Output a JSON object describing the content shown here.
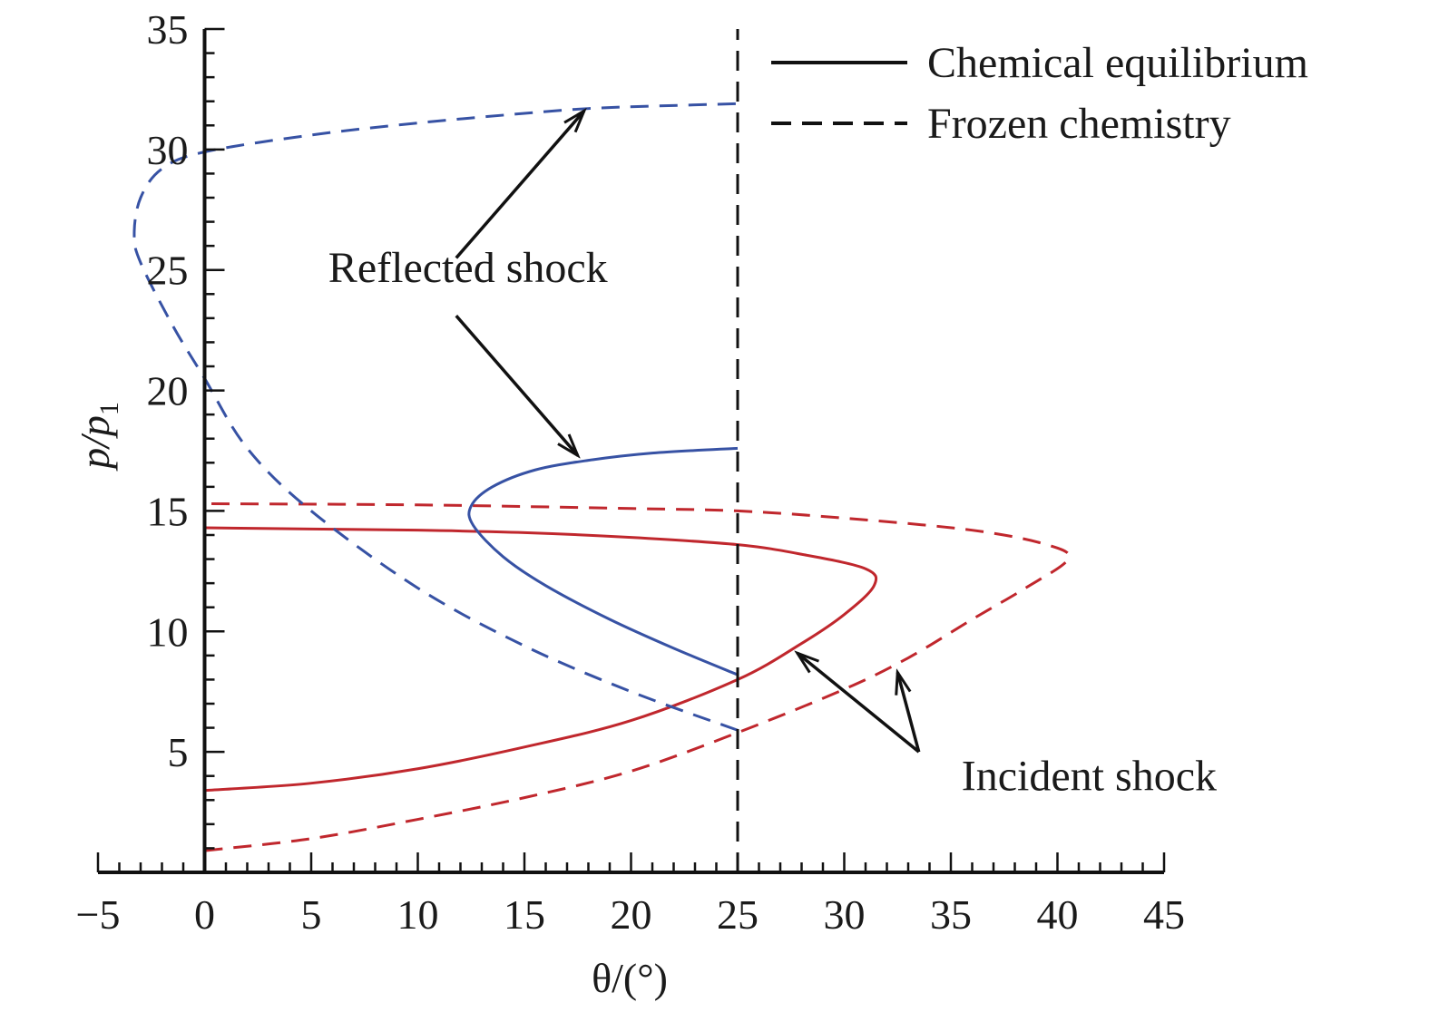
{
  "chart_data": {
    "type": "line",
    "xlabel": "θ/(°)",
    "ylabel": "p/p1",
    "xlim": [
      -5,
      45
    ],
    "ylim": [
      0,
      35
    ],
    "x_ticks": [
      "−5",
      "0",
      "5",
      "10",
      "15",
      "20",
      "25",
      "30",
      "35",
      "40",
      "45"
    ],
    "y_ticks": [
      "5",
      "10",
      "15",
      "20",
      "25",
      "30",
      "35"
    ],
    "grid": false,
    "legend_position": "top-right",
    "legend": [
      {
        "label": "Chemical equilibrium",
        "style": "solid"
      },
      {
        "label": "Frozen chemistry",
        "style": "dashed"
      }
    ],
    "colors": {
      "incident": "#c0272d",
      "reflected": "#3752a4",
      "reference": "#111111"
    },
    "series": [
      {
        "group": "incident",
        "style": "solid",
        "points": [
          [
            0,
            3.4
          ],
          [
            5,
            3.7
          ],
          [
            10,
            4.3
          ],
          [
            15,
            5.2
          ],
          [
            20,
            6.3
          ],
          [
            25,
            8.0
          ],
          [
            28,
            9.5
          ],
          [
            30,
            10.7
          ],
          [
            31.4,
            11.9
          ],
          [
            31,
            12.6
          ],
          [
            28,
            13.2
          ],
          [
            25,
            13.6
          ],
          [
            20,
            13.9
          ],
          [
            15,
            14.1
          ],
          [
            10,
            14.2
          ],
          [
            5,
            14.25
          ],
          [
            0,
            14.3
          ]
        ]
      },
      {
        "group": "incident",
        "style": "dashed",
        "points": [
          [
            0,
            0.9
          ],
          [
            5,
            1.4
          ],
          [
            10,
            2.2
          ],
          [
            15,
            3.1
          ],
          [
            20,
            4.2
          ],
          [
            25,
            5.8
          ],
          [
            30,
            7.6
          ],
          [
            33,
            8.9
          ],
          [
            36,
            10.5
          ],
          [
            38.5,
            11.8
          ],
          [
            40.5,
            13.0
          ],
          [
            39.5,
            13.6
          ],
          [
            36,
            14.2
          ],
          [
            30,
            14.7
          ],
          [
            25,
            15.0
          ],
          [
            20,
            15.1
          ],
          [
            10,
            15.25
          ],
          [
            0,
            15.3
          ]
        ]
      },
      {
        "group": "reflected",
        "style": "solid",
        "points": [
          [
            25,
            8.2
          ],
          [
            22,
            9.3
          ],
          [
            19,
            10.5
          ],
          [
            16,
            11.9
          ],
          [
            14,
            13.1
          ],
          [
            12.6,
            14.4
          ],
          [
            12.5,
            15.2
          ],
          [
            13.5,
            16.0
          ],
          [
            15.5,
            16.7
          ],
          [
            18,
            17.1
          ],
          [
            21,
            17.4
          ],
          [
            25,
            17.6
          ]
        ]
      },
      {
        "group": "reflected",
        "style": "dashed",
        "points": [
          [
            25,
            5.9
          ],
          [
            20,
            7.5
          ],
          [
            15,
            9.4
          ],
          [
            10,
            11.8
          ],
          [
            5,
            15.0
          ],
          [
            2,
            17.6
          ],
          [
            0,
            20.5
          ],
          [
            -1.5,
            22.7
          ],
          [
            -3,
            25.3
          ],
          [
            -3.3,
            26.5
          ],
          [
            -3,
            28.0
          ],
          [
            -2,
            29.2
          ],
          [
            0,
            29.9
          ],
          [
            5,
            30.6
          ],
          [
            10,
            31.1
          ],
          [
            15,
            31.5
          ],
          [
            18,
            31.7
          ],
          [
            21,
            31.8
          ],
          [
            25,
            31.9
          ]
        ]
      },
      {
        "group": "reference",
        "style": "dashed",
        "points": [
          [
            25,
            0
          ],
          [
            25,
            35
          ]
        ]
      }
    ],
    "annotations": [
      {
        "text": "Reflected shock",
        "x": 5.8,
        "y": 24.5
      },
      {
        "text": "Incident shock",
        "x": 35.5,
        "y": 3.4
      }
    ],
    "arrows": [
      {
        "from": [
          11.8,
          25.5
        ],
        "to": [
          17.8,
          31.6
        ]
      },
      {
        "from": [
          11.8,
          23.1
        ],
        "to": [
          17.5,
          17.3
        ]
      },
      {
        "from": [
          33.5,
          5.0
        ],
        "to": [
          27.8,
          9.1
        ]
      },
      {
        "from": [
          33.5,
          5.0
        ],
        "to": [
          32.5,
          8.3
        ]
      }
    ]
  }
}
